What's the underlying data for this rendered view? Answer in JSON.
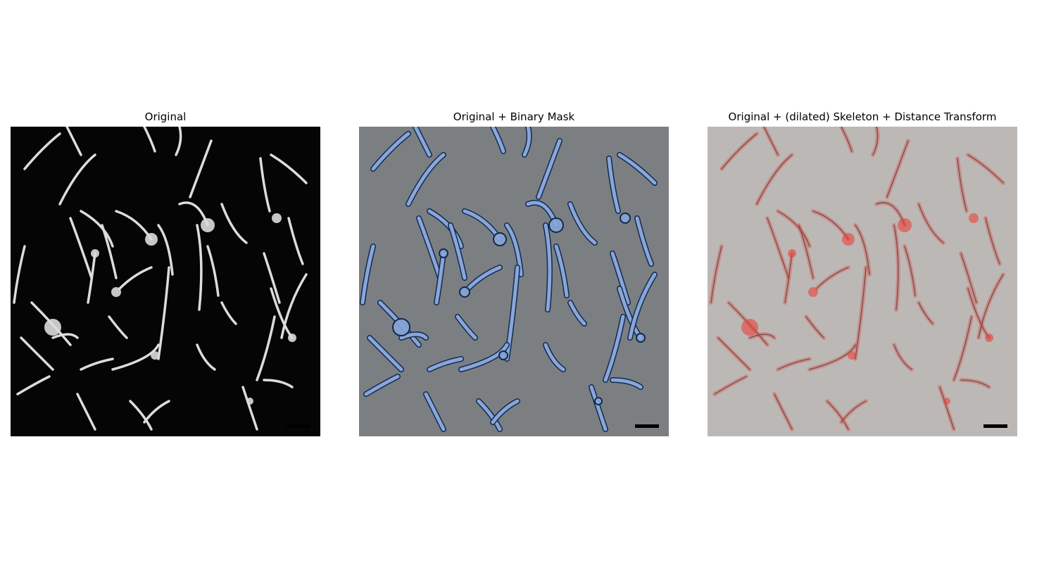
{
  "panels": [
    {
      "title": "Original",
      "background": "#050505",
      "stroke": "#dcdcdc",
      "mode": "original"
    },
    {
      "title": "Original + Binary Mask",
      "background": "#7c7f82",
      "stroke": "#8aa6d8",
      "outline": "#0f2a50",
      "mode": "mask"
    },
    {
      "title": "Original + (dilated) Skeleton + Distance Transform",
      "background": "#bcb8b5",
      "stroke": "#7a5555",
      "highlight": "#e8413a",
      "mode": "skeleton"
    }
  ]
}
